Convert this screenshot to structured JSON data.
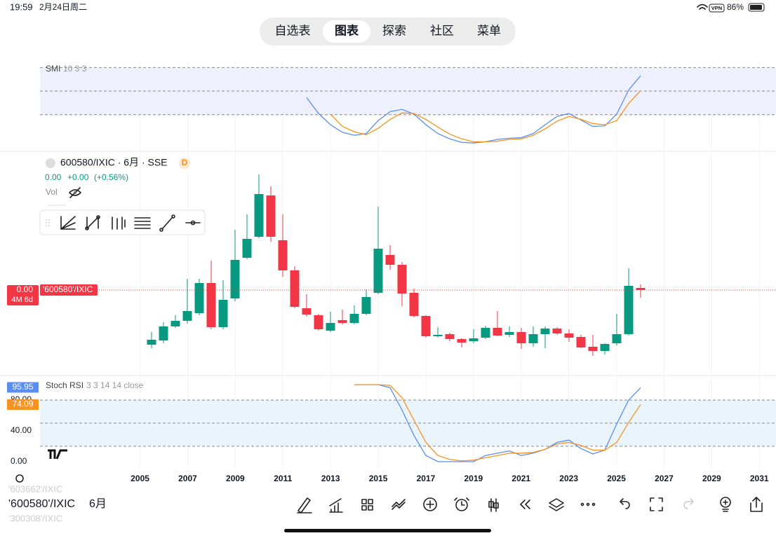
{
  "status_bar": {
    "time": "19:59",
    "date": "2月24日周二",
    "vpn": "VPN",
    "battery": "86%"
  },
  "tabs": [
    "自选表",
    "图表",
    "探索",
    "社区",
    "菜单"
  ],
  "active_tab": 1,
  "smi": {
    "type": "line",
    "name": "SMI",
    "params": "10 3 3",
    "ylim": [
      -101,
      50
    ],
    "levels": [
      40,
      0,
      -40
    ],
    "series": [
      {
        "color": "#5b8def",
        "values": [
          null,
          null,
          null,
          null,
          null,
          null,
          null,
          null,
          null,
          null,
          null,
          null,
          null,
          -11,
          -38,
          -57,
          -70,
          -75,
          -72,
          -50,
          -35,
          -31,
          -39,
          -57,
          -72,
          -81,
          -87,
          -88,
          -86,
          -82,
          -80,
          -79,
          -72,
          -57,
          -43,
          -38,
          -49,
          -60,
          -59,
          -39,
          2,
          26
        ]
      },
      {
        "color": "#f7931e",
        "values": [
          null,
          null,
          null,
          null,
          null,
          null,
          null,
          null,
          null,
          null,
          null,
          null,
          null,
          null,
          null,
          -39,
          -60,
          -69,
          -74,
          -63,
          -48,
          -37,
          -38,
          -48,
          -61,
          -73,
          -81,
          -86,
          -86,
          -85,
          -82,
          -81,
          -75,
          -64,
          -51,
          -43,
          -48,
          -55,
          -57,
          -50,
          -21,
          1
        ]
      }
    ]
  },
  "main": {
    "type": "candlestick",
    "symbol": "600580/IXIC · 6月 · SSE",
    "badge": "D",
    "price": "0.00",
    "change": "+0.00",
    "change_pct": "(+0.56%)",
    "vol": "Vol",
    "ylim": [
      -5,
      315
    ],
    "up_color": "#089981",
    "down_color": "#f23645",
    "open": [
      38,
      44,
      64,
      72,
      83,
      126,
      63,
      104,
      162,
      192,
      251,
      187,
      144,
      90,
      80,
      58,
      73,
      69,
      82,
      112,
      166,
      152,
      112,
      79,
      50,
      53,
      46,
      43,
      48,
      62,
      52,
      56,
      40,
      53,
      61,
      54,
      49,
      35,
      29,
      40,
      53,
      119
    ],
    "high": [
      56,
      70,
      80,
      132,
      132,
      158,
      130,
      202,
      224,
      281,
      264,
      224,
      150,
      110,
      82,
      85,
      88,
      94,
      117,
      235,
      180,
      156,
      118,
      80,
      63,
      55,
      47,
      60,
      65,
      86,
      64,
      62,
      64,
      64,
      63,
      60,
      52,
      52,
      40,
      82,
      147,
      124
    ],
    "low": [
      33,
      40,
      62,
      68,
      80,
      60,
      60,
      100,
      160,
      190,
      185,
      135,
      90,
      78,
      58,
      56,
      67,
      67,
      80,
      110,
      145,
      93,
      77,
      48,
      48,
      43,
      34,
      40,
      46,
      50,
      49,
      32,
      35,
      33,
      52,
      42,
      33,
      22,
      24,
      37,
      51,
      105
    ],
    "close": [
      45,
      64,
      72,
      86,
      126,
      63,
      102,
      159,
      189,
      253,
      192,
      144,
      92,
      81,
      60,
      69,
      69,
      82,
      106,
      175,
      152,
      111,
      79,
      50,
      52,
      46,
      41,
      47,
      62,
      51,
      56,
      40,
      53,
      61,
      54,
      48,
      34,
      29,
      39,
      53,
      122,
      116
    ],
    "price_label": "0.00",
    "countdown": "4M 6d",
    "series_label": "'600580'/IXIC"
  },
  "stoch": {
    "type": "line",
    "name": "Stoch RSI",
    "params": "3 3 14 14 close",
    "ylim": [
      -10,
      111
    ],
    "levels": [
      80,
      50,
      20
    ],
    "yticks": [
      {
        "value": 80,
        "label": "80.00"
      },
      {
        "value": 40,
        "label": "40.00"
      },
      {
        "value": 0,
        "label": "0.00"
      }
    ],
    "series": [
      {
        "color": "#5b8def",
        "values": [
          null,
          null,
          null,
          null,
          null,
          null,
          null,
          null,
          null,
          null,
          null,
          null,
          null,
          null,
          null,
          null,
          null,
          100,
          100,
          100,
          96,
          67,
          34,
          8,
          0,
          0,
          0,
          0,
          8,
          11,
          14,
          8,
          11,
          16,
          25,
          28,
          17,
          10,
          15,
          49,
          80,
          95.95
        ]
      },
      {
        "color": "#f7931e",
        "values": [
          null,
          null,
          null,
          null,
          null,
          null,
          null,
          null,
          null,
          null,
          null,
          null,
          null,
          null,
          null,
          null,
          null,
          100,
          100,
          100,
          99,
          83,
          54,
          25,
          8,
          3,
          1,
          2,
          5,
          8,
          11,
          11,
          12,
          16,
          23,
          25,
          21,
          15,
          15,
          25,
          51,
          74.09
        ]
      }
    ]
  },
  "xaxis": {
    "xlim": [
      2000.8,
      2031.7
    ],
    "xticks": [
      2005,
      2007,
      2009,
      2011,
      2013,
      2015,
      2017,
      2019,
      2021,
      2023,
      2025,
      2027,
      2029,
      2031
    ]
  },
  "bottom": {
    "prev": "'603662'/IXIC",
    "symbol": "'600580'/IXIC",
    "next": "'300308'/IXIC",
    "interval": "6月"
  }
}
